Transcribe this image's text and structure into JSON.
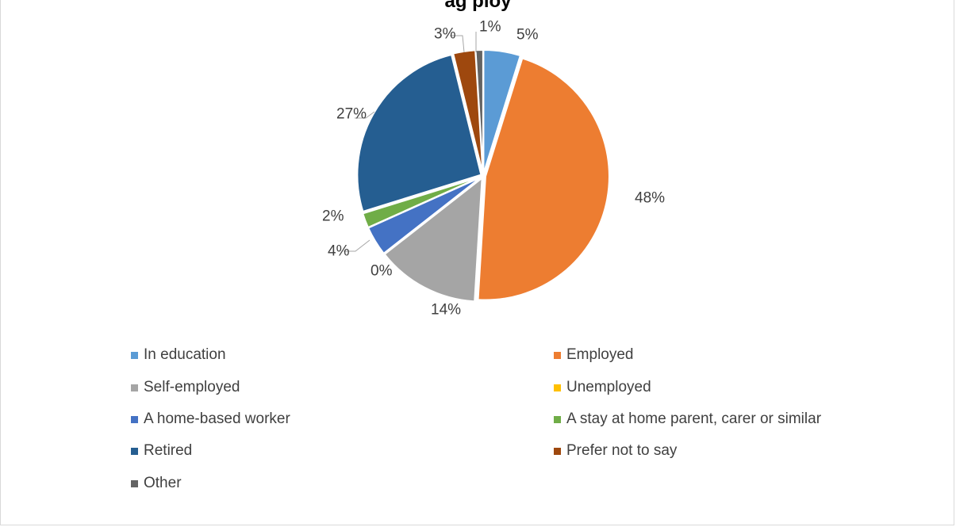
{
  "chart_data": {
    "type": "pie",
    "title": "ag         ploy",
    "categories": [
      "In education",
      "Employed",
      "Self-employed",
      "Unemployed",
      "A home-based worker",
      "A stay at home parent, carer or similar",
      "Retired",
      "Prefer not to say",
      "Other"
    ],
    "values": [
      5,
      48,
      14,
      0,
      4,
      2,
      27,
      3,
      1
    ],
    "data_labels": [
      "5%",
      "48%",
      "14%",
      "0%",
      "4%",
      "2%",
      "27%",
      "3%",
      "1%"
    ],
    "colors": [
      "#5b9bd5",
      "#ed7d31",
      "#a5a5a5",
      "#ffc000",
      "#4472c4",
      "#70ad47",
      "#255e91",
      "#9e480e",
      "#636363"
    ],
    "legend_position": "bottom"
  }
}
